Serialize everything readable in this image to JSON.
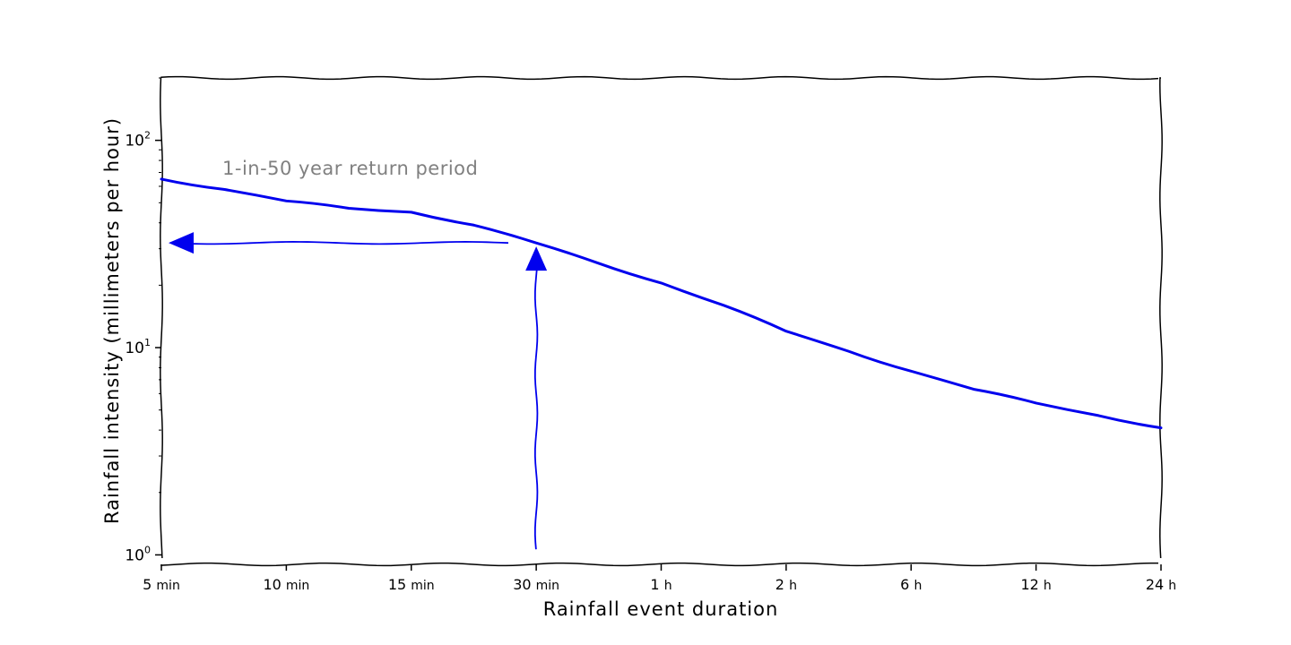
{
  "chart_data": {
    "type": "line",
    "xlabel": "Rainfall event duration",
    "ylabel": "Rainfall intensity (millimeters per hour)",
    "x_ticks": [
      "5 min",
      "10 min",
      "15 min",
      "30 min",
      "1 h",
      "2 h",
      "6 h",
      "12 h",
      "24 h"
    ],
    "y_scale": "log",
    "ylim": [
      0.9,
      200
    ],
    "y_ticks": [
      {
        "value": 1,
        "base": "10",
        "exp": "0"
      },
      {
        "value": 10,
        "base": "10",
        "exp": "1"
      },
      {
        "value": 100,
        "base": "10",
        "exp": "2"
      }
    ],
    "annotation": "1-in-50 year return period",
    "line_color": "#0000ee",
    "series": [
      {
        "x_pos": [
          0,
          0.5,
          1,
          1.5,
          2,
          2.5,
          3,
          3.5,
          4,
          4.5,
          5,
          5.5,
          6,
          6.5,
          7,
          7.5,
          8
        ],
        "values": [
          65,
          58,
          51,
          47,
          45,
          39,
          32,
          25.5,
          20.5,
          16,
          12,
          9.6,
          7.7,
          6.3,
          5.4,
          4.7,
          4.1
        ]
      }
    ],
    "highlight": {
      "x_pos": 3,
      "value": 32
    }
  }
}
